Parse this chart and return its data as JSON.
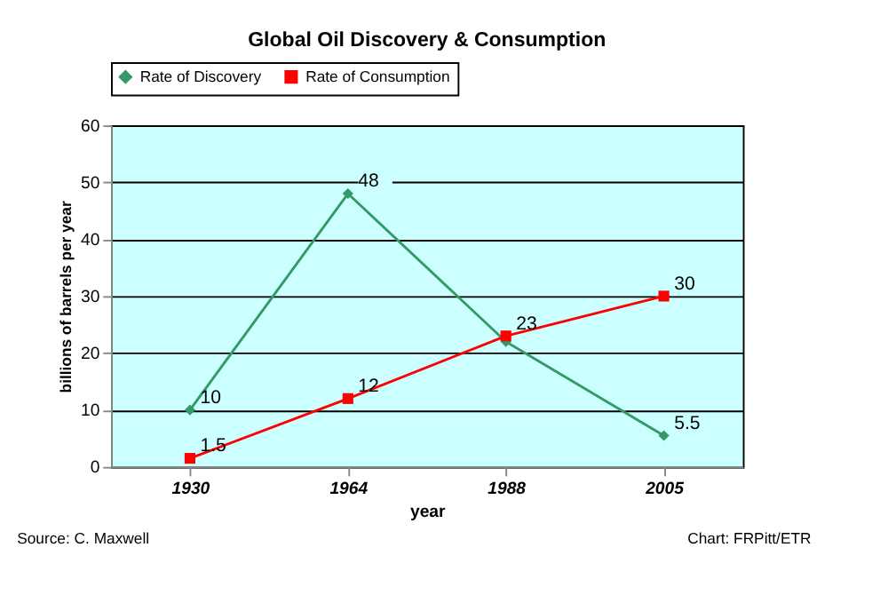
{
  "chart_data": {
    "type": "line",
    "title": "Global Oil Discovery & Consumption",
    "xlabel": "year",
    "ylabel": "billions of barrels per year",
    "categories": [
      "1930",
      "1964",
      "1988",
      "2005"
    ],
    "series": [
      {
        "name": "Rate of Discovery",
        "color": "#339966",
        "marker": "diamond",
        "values": [
          10,
          48,
          22,
          5.5
        ],
        "value_labels": [
          "10",
          "48",
          null,
          "5.5"
        ]
      },
      {
        "name": "Rate of Consumption",
        "color": "#ff0000",
        "marker": "square",
        "values": [
          1.5,
          12,
          23,
          30
        ],
        "value_labels": [
          "1.5",
          "12",
          "23",
          "30"
        ]
      }
    ],
    "ylim": [
      0,
      60
    ],
    "yticks": [
      0,
      10,
      20,
      30,
      40,
      50,
      60
    ],
    "grid": "y",
    "legend": "top",
    "annotations": [
      "Source: C. Maxwell",
      "Chart: FRPitt/ETR"
    ]
  }
}
